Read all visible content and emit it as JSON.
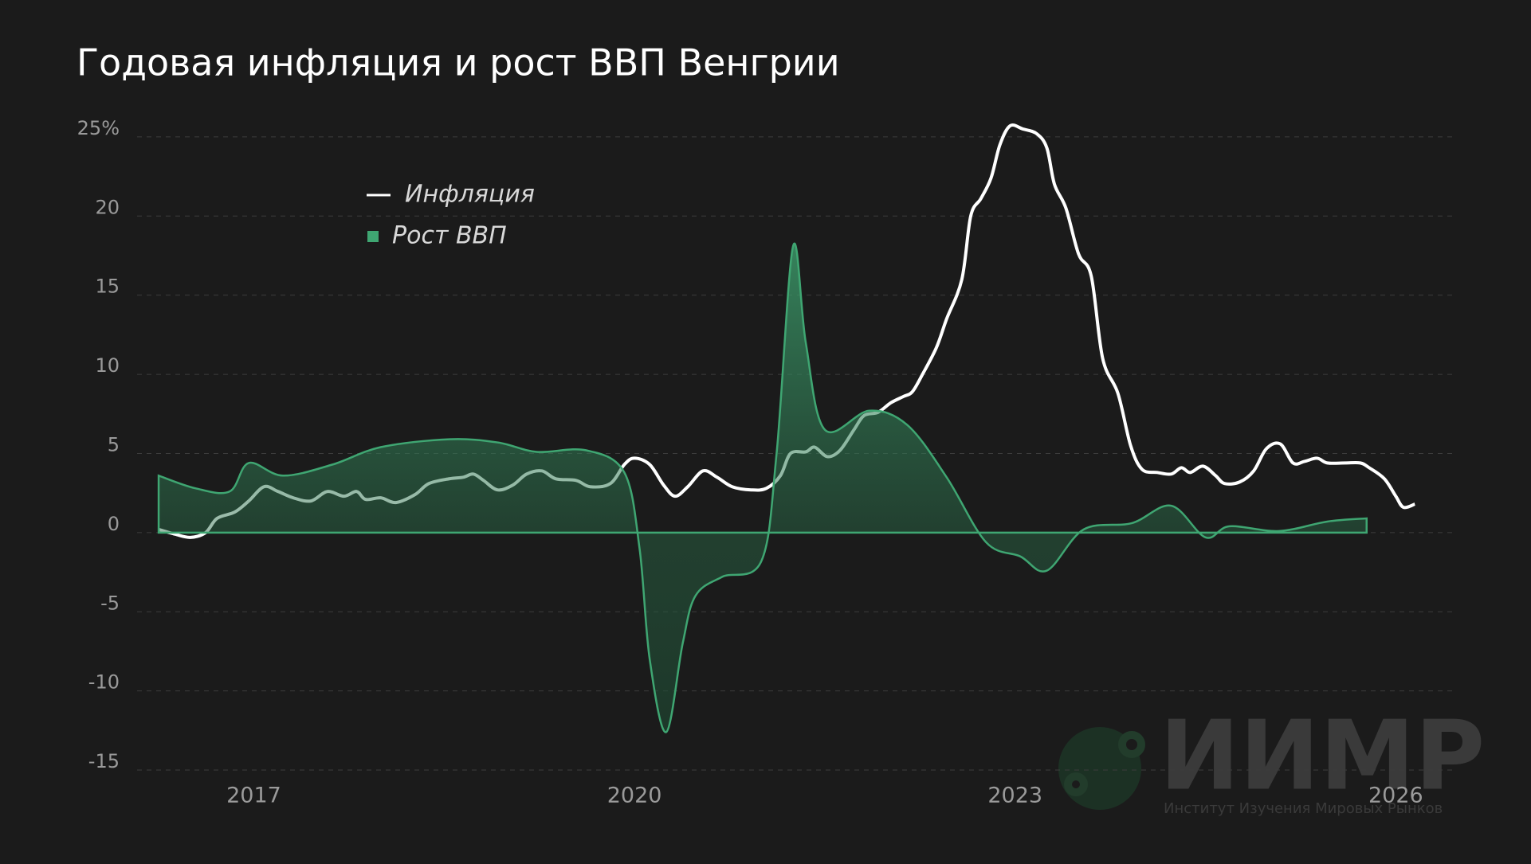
{
  "chart_data": {
    "type": "line-area",
    "title": "Годовая инфляция и рост ВВП Венгрии",
    "watermark": "ИИМР",
    "watermark_subtitle": "Институт Изучения Мировых Рынков",
    "xlim": [
      2016.08,
      2026.45
    ],
    "xticks": [
      2017,
      2020,
      2023,
      2026
    ],
    "ylim": [
      -15.5,
      26
    ],
    "yticks": [
      {
        "value": 25,
        "label": "25%"
      },
      20,
      15,
      10,
      5,
      0,
      -5,
      -10,
      -15
    ],
    "grid": true,
    "legend": "upper-left",
    "series": [
      {
        "name": "Инфляция",
        "color": "#ffffff",
        "kind": "line",
        "x": [
          2016.25,
          2016.38,
          2016.5,
          2016.62,
          2016.71,
          2016.85,
          2016.96,
          2017.08,
          2017.19,
          2017.31,
          2017.45,
          2017.58,
          2017.71,
          2017.81,
          2017.88,
          2018.0,
          2018.12,
          2018.27,
          2018.38,
          2018.54,
          2018.65,
          2018.73,
          2018.81,
          2018.92,
          2019.04,
          2019.15,
          2019.27,
          2019.38,
          2019.54,
          2019.65,
          2019.81,
          2019.92,
          2020.0,
          2020.12,
          2020.23,
          2020.32,
          2020.42,
          2020.54,
          2020.65,
          2020.77,
          2020.92,
          2021.04,
          2021.15,
          2021.23,
          2021.35,
          2021.42,
          2021.52,
          2021.62,
          2021.73,
          2021.81,
          2021.92,
          2022.02,
          2022.12,
          2022.19,
          2022.27,
          2022.38,
          2022.46,
          2022.58,
          2022.65,
          2022.73,
          2022.81,
          2022.88,
          2022.96,
          2023.06,
          2023.17,
          2023.25,
          2023.31,
          2023.4,
          2023.5,
          2023.6,
          2023.69,
          2023.81,
          2023.91,
          2024.0,
          2024.12,
          2024.23,
          2024.31,
          2024.38,
          2024.48,
          2024.58,
          2024.65,
          2024.77,
          2024.88,
          2024.98,
          2025.09,
          2025.19,
          2025.28,
          2025.38,
          2025.46,
          2025.6,
          2025.72,
          2025.79,
          2025.91,
          2026.0,
          2026.06,
          2026.15
        ],
        "values": [
          0.2,
          -0.1,
          -0.3,
          0,
          0.9,
          1.3,
          2.0,
          2.9,
          2.6,
          2.2,
          2.0,
          2.6,
          2.3,
          2.6,
          2.1,
          2.2,
          1.9,
          2.4,
          3.1,
          3.4,
          3.5,
          3.7,
          3.3,
          2.7,
          3.0,
          3.7,
          3.9,
          3.4,
          3.3,
          2.9,
          3.1,
          4.3,
          4.7,
          4.3,
          3.0,
          2.3,
          2.9,
          3.9,
          3.5,
          2.9,
          2.7,
          2.8,
          3.6,
          5.0,
          5.1,
          5.4,
          4.8,
          5.2,
          6.5,
          7.4,
          7.6,
          8.2,
          8.6,
          8.9,
          10.0,
          11.7,
          13.5,
          16.0,
          20.0,
          21.1,
          22.4,
          24.5,
          25.7,
          25.5,
          25.2,
          24.3,
          22.0,
          20.5,
          17.6,
          16.2,
          11.0,
          8.8,
          5.5,
          4.0,
          3.8,
          3.7,
          4.1,
          3.8,
          4.2,
          3.6,
          3.1,
          3.2,
          3.9,
          5.3,
          5.6,
          4.4,
          4.5,
          4.7,
          4.4,
          4.4,
          4.4,
          4.1,
          3.4,
          2.3,
          1.6,
          1.8
        ]
      },
      {
        "name": "Рост ВВП",
        "color": "#3fa672",
        "kind": "area",
        "x": [
          2016.25,
          2016.54,
          2016.81,
          2016.96,
          2017.23,
          2017.62,
          2018.0,
          2018.54,
          2018.92,
          2019.23,
          2019.62,
          2019.92,
          2020.04,
          2020.12,
          2020.25,
          2020.38,
          2020.48,
          2020.69,
          2021.0,
          2021.12,
          2021.25,
          2021.35,
          2021.5,
          2021.85,
          2022.15,
          2022.46,
          2022.77,
          2023.04,
          2023.25,
          2023.54,
          2023.92,
          2024.23,
          2024.5,
          2024.69,
          2025.08,
          2025.46,
          2025.77
        ],
        "values": [
          3.6,
          2.8,
          2.6,
          4.4,
          3.6,
          4.3,
          5.4,
          5.9,
          5.7,
          5.1,
          5.2,
          3.8,
          -1,
          -8,
          -12.6,
          -7,
          -4,
          -2.8,
          -1.8,
          5,
          18.1,
          12,
          6.5,
          7.7,
          6.8,
          3.5,
          -0.6,
          -1.5,
          -2.4,
          0.2,
          0.6,
          1.7,
          -0.3,
          0.4,
          0.1,
          0.7,
          0.9
        ]
      }
    ]
  }
}
